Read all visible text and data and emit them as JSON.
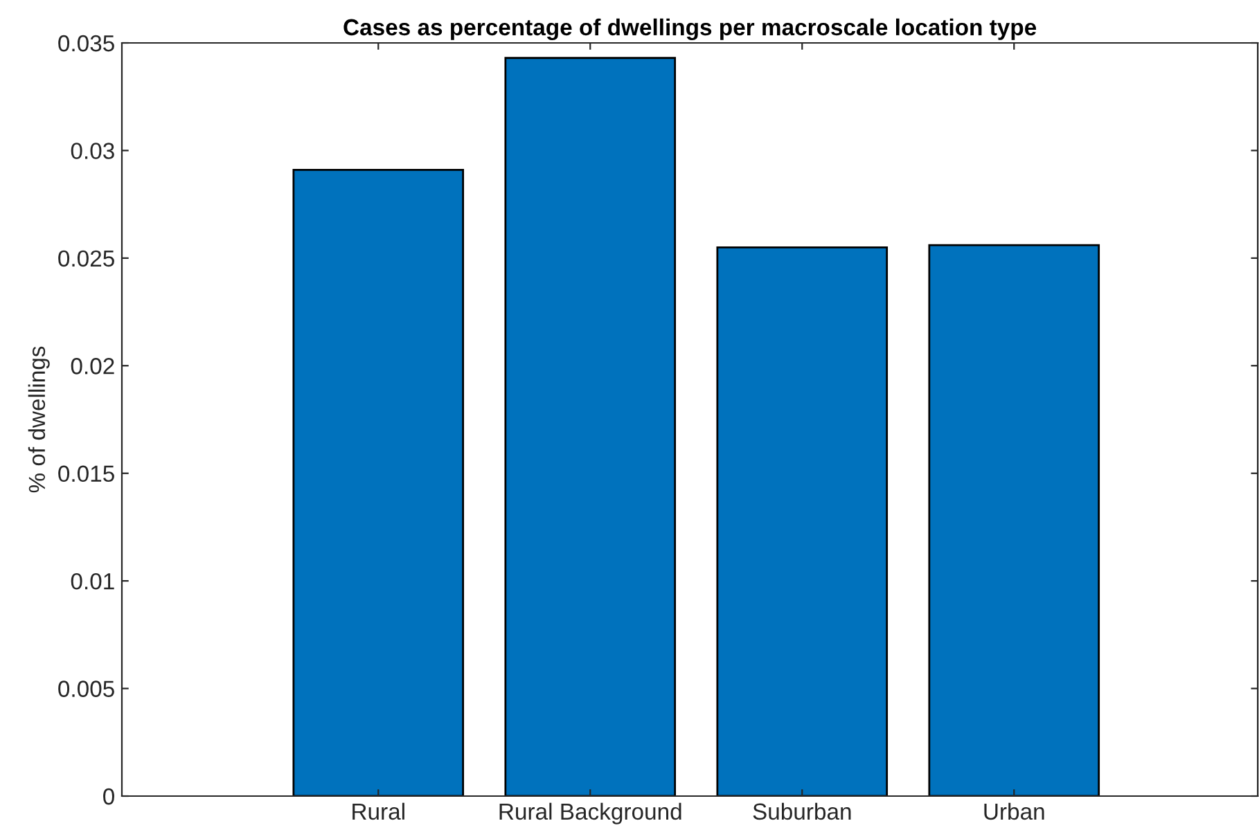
{
  "chart_data": {
    "type": "bar",
    "title": "Cases as percentage of dwellings per macroscale location type",
    "ylabel": "% of dwellings",
    "categories": [
      "Rural",
      "Rural Background",
      "Suburban",
      "Urban"
    ],
    "values": [
      0.0291,
      0.0343,
      0.0255,
      0.0256
    ],
    "color": "#0072bd",
    "ylim": [
      0,
      0.035
    ],
    "yticks": [
      0,
      0.005,
      0.01,
      0.015,
      0.02,
      0.025,
      0.03,
      0.035
    ],
    "grid": false
  }
}
